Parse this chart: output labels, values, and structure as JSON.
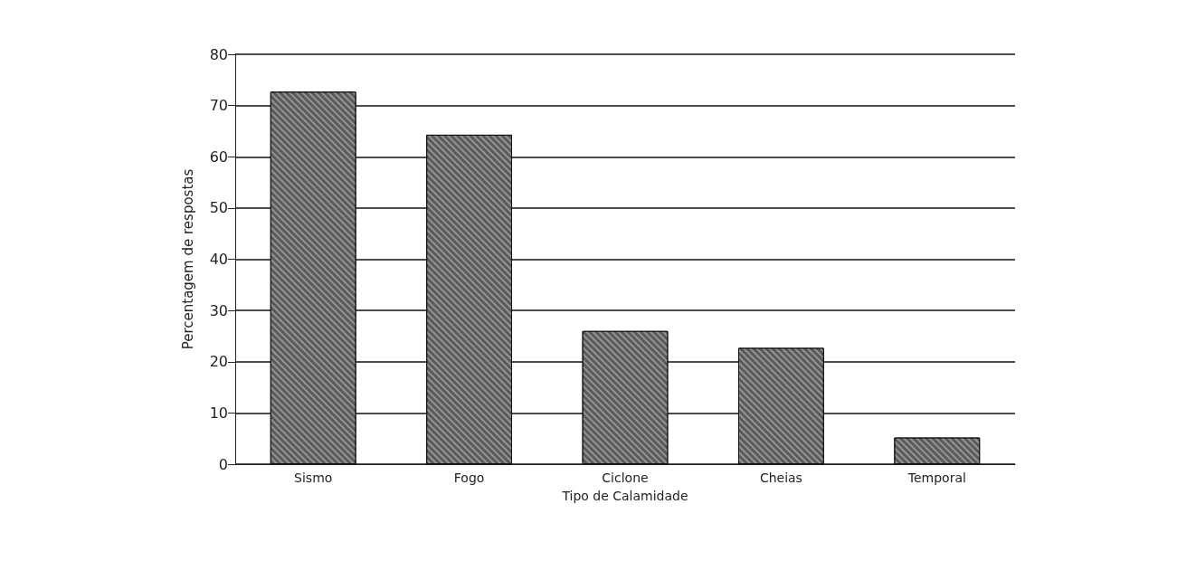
{
  "chart_data": {
    "type": "bar",
    "xlabel": "Tipo de Calamidade",
    "ylabel": "Percentagem de respostas",
    "categories": [
      "Sismo",
      "Fogo",
      "Ciclone",
      "Cheias",
      "Temporal"
    ],
    "values": [
      72.7,
      64.3,
      26,
      22.7,
      5.2
    ],
    "color": "#5a5a5a",
    "ylim": [
      0,
      80
    ],
    "yticks": [
      0,
      10,
      20,
      30,
      40,
      50,
      60,
      70,
      80
    ],
    "grid": "y"
  }
}
